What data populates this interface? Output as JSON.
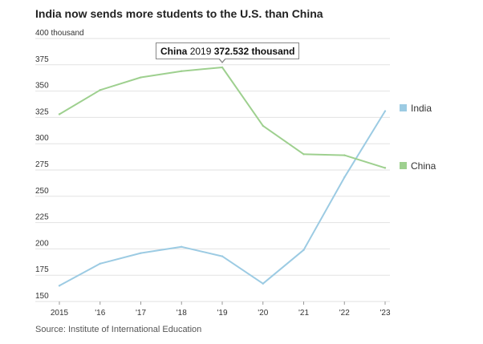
{
  "title": "India now sends more students to the U.S. than China",
  "source": "Source: Institute of International Education",
  "tooltip": {
    "series": "China",
    "year": "2019",
    "value": "372.532 thousand"
  },
  "chart_data": {
    "type": "line",
    "title": "India now sends more students to the U.S. than China",
    "x": [
      2015,
      2016,
      2017,
      2018,
      2019,
      2020,
      2021,
      2022,
      2023
    ],
    "x_tick_labels": [
      "2015",
      "'16",
      "'17",
      "'18",
      "'19",
      "'20",
      "'21",
      "'22",
      "'23"
    ],
    "y_tick_values": [
      150,
      175,
      200,
      225,
      250,
      275,
      300,
      325,
      350,
      375,
      400
    ],
    "y_tick_labels": [
      "150",
      "175",
      "200",
      "225",
      "250",
      "275",
      "300",
      "325",
      "350",
      "375",
      "400 thousand"
    ],
    "ylim": [
      150,
      400
    ],
    "grid": true,
    "legend_placement": "right, at line ends",
    "series": [
      {
        "name": "India",
        "color": "#9ccbe3",
        "values": [
          165,
          186,
          196,
          202,
          193,
          167,
          199,
          268,
          331
        ]
      },
      {
        "name": "China",
        "color": "#9ed08f",
        "values": [
          328,
          351,
          363,
          369,
          372.532,
          317,
          290,
          289,
          277
        ]
      }
    ]
  }
}
